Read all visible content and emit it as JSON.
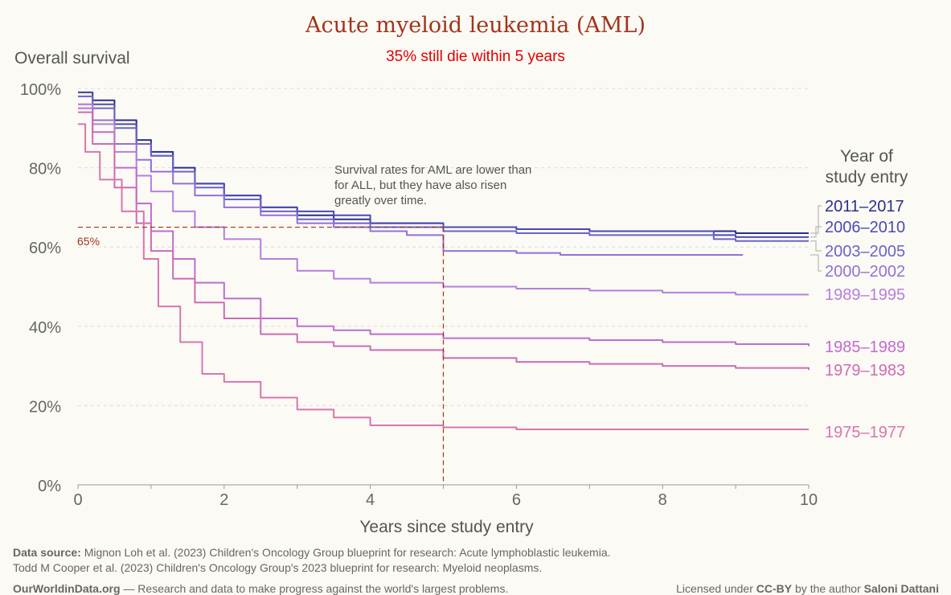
{
  "chart_data": {
    "type": "line",
    "title": "Acute myeloid leukemia (AML)",
    "subtitle": "35% still die within 5 years",
    "ylabel": "Overall survival",
    "xlabel": "Years since study entry",
    "xlim": [
      0,
      10
    ],
    "ylim": [
      0,
      100
    ],
    "x_ticks": [
      "0",
      "2",
      "4",
      "6",
      "8",
      "10"
    ],
    "y_ticks": [
      "0%",
      "20%",
      "40%",
      "60%",
      "80%",
      "100%"
    ],
    "legend_title": "Year of study entry",
    "reference": {
      "y_value": 65,
      "x_value": 5,
      "label": "65%"
    },
    "annotation": "Survival rates for AML are lower than for ALL, but they have also risen greatly over time.",
    "series": [
      {
        "name": "2011–2017",
        "color": "#2b2e8e",
        "x": [
          0,
          0.2,
          0.5,
          0.8,
          1,
          1.3,
          1.6,
          2,
          2.5,
          3,
          3.5,
          4,
          5,
          6,
          7,
          8,
          9,
          10
        ],
        "values": [
          99,
          97,
          92,
          87,
          84,
          80,
          76,
          73,
          70,
          68,
          67,
          66,
          65,
          64.5,
          64,
          64,
          63.5,
          63.5
        ]
      },
      {
        "name": "2006–2010",
        "color": "#4a4bb0",
        "x": [
          0,
          0.2,
          0.5,
          0.8,
          1,
          1.3,
          1.6,
          2,
          2.5,
          3,
          3.5,
          4,
          5,
          6,
          7,
          8,
          8.7,
          9,
          10
        ],
        "values": [
          99,
          96,
          91,
          86,
          83,
          79,
          76,
          73,
          70,
          69,
          68,
          66,
          65,
          64.5,
          64,
          64,
          63,
          62.5,
          62.5
        ]
      },
      {
        "name": "2003–2005",
        "color": "#6b63c8",
        "x": [
          0,
          0.2,
          0.5,
          0.8,
          1,
          1.3,
          1.6,
          2,
          2.5,
          3,
          3.5,
          4,
          5,
          6,
          7,
          8,
          8.7,
          9,
          10
        ],
        "values": [
          98,
          95,
          90,
          86,
          83,
          79,
          75,
          72,
          69,
          67,
          66,
          65,
          64,
          63.5,
          63,
          63,
          62,
          61.5,
          61.5
        ]
      },
      {
        "name": "2000–2002",
        "color": "#9370d8",
        "x": [
          0,
          0.2,
          0.5,
          0.8,
          1,
          1.3,
          1.6,
          2,
          2.5,
          3,
          3.5,
          4,
          4.5,
          5,
          6,
          6.6,
          7,
          8,
          9.1
        ],
        "values": [
          96,
          92,
          86,
          82,
          79,
          76,
          73,
          70,
          68,
          66,
          65,
          64,
          63,
          59,
          58.5,
          58,
          58,
          58,
          58
        ]
      },
      {
        "name": "1989–1995",
        "color": "#b57fde",
        "x": [
          0,
          0.2,
          0.5,
          0.8,
          1,
          1.3,
          1.6,
          2,
          2.5,
          3,
          3.5,
          4,
          5,
          6,
          7,
          8,
          9,
          10
        ],
        "values": [
          96,
          91,
          84,
          78,
          74,
          69,
          65,
          62,
          57,
          54,
          52,
          51,
          50,
          49.5,
          49,
          48.5,
          48,
          48
        ]
      },
      {
        "name": "1985–1989",
        "color": "#bf6cd0",
        "x": [
          0,
          0.2,
          0.5,
          0.8,
          1,
          1.3,
          1.6,
          2,
          2.5,
          3,
          3.5,
          4,
          5,
          6,
          7,
          8,
          9,
          10
        ],
        "values": [
          95,
          89,
          80,
          71,
          64,
          57,
          51,
          47,
          42,
          40,
          39,
          38,
          37,
          37,
          36.5,
          36,
          35.5,
          35
        ]
      },
      {
        "name": "1979–1983",
        "color": "#cc6cb6",
        "x": [
          0,
          0.2,
          0.5,
          0.8,
          1,
          1.3,
          1.6,
          2,
          2.5,
          3,
          3.5,
          4,
          5,
          6,
          7,
          8,
          9,
          10
        ],
        "values": [
          94,
          86,
          75,
          66,
          59,
          52,
          46,
          42,
          38,
          36,
          35,
          34,
          32,
          31,
          30.5,
          30,
          29.5,
          29
        ]
      },
      {
        "name": "1975–1977",
        "color": "#d676b0",
        "x": [
          0,
          0.1,
          0.3,
          0.6,
          0.9,
          1.1,
          1.4,
          1.7,
          2,
          2.5,
          3,
          3.5,
          4,
          5,
          6,
          7,
          8,
          10
        ],
        "values": [
          91,
          84,
          77,
          69,
          57,
          45,
          36,
          28,
          26,
          22,
          19,
          17,
          15,
          14.5,
          14,
          14,
          14,
          14
        ]
      }
    ]
  },
  "footer": {
    "source_label": "Data source:",
    "source_text": "Mignon Loh et al. (2023) Children's Oncology Group blueprint for research: Acute lymphoblastic leukemia.",
    "source_text2": "Todd M Cooper et al. (2023) Children's Oncology Group's 2023 blueprint for research: Myeloid neoplasms.",
    "owid": "OurWorldinData.org",
    "owid_tagline": "— Research and data to make progress against the world's largest problems.",
    "license_pre": "Licensed under",
    "license": "CC-BY",
    "license_mid": "by the author",
    "author": "Saloni Dattani"
  }
}
